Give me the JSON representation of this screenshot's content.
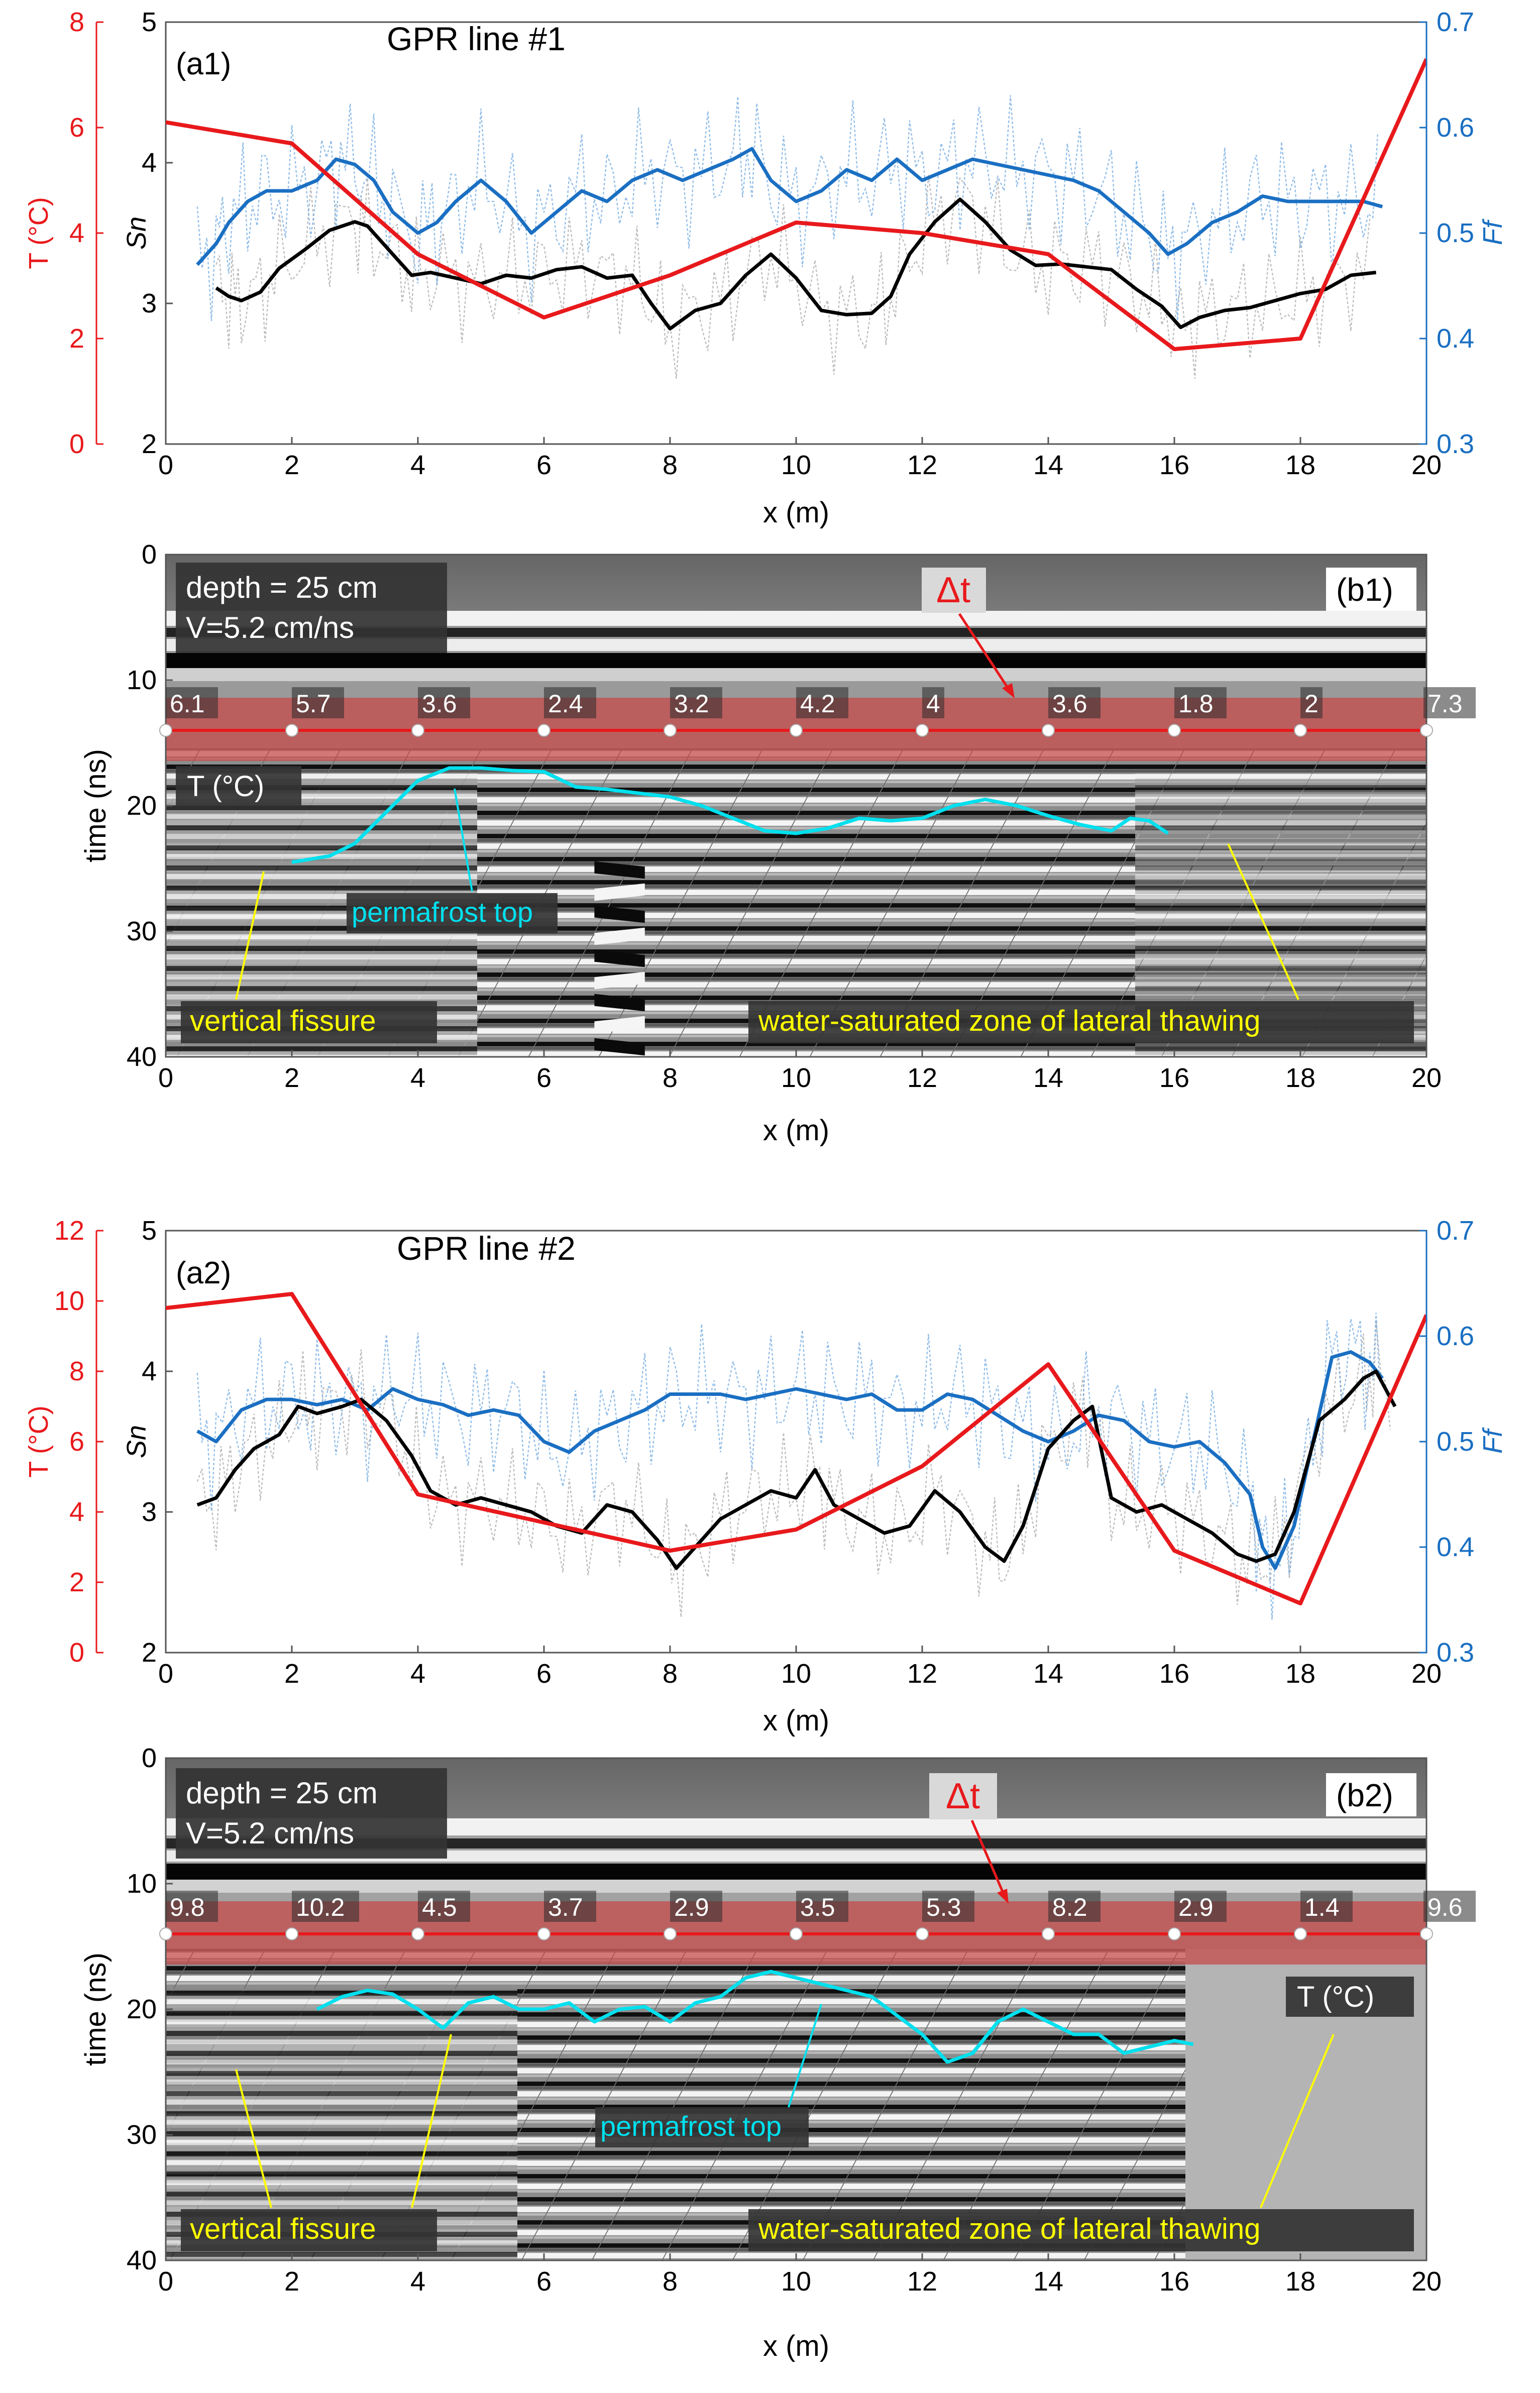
{
  "figure": {
    "panels": [
      {
        "id": "a1",
        "panel_label": "(a1)",
        "title": "GPR line #1",
        "xlabel": "x (m)",
        "left_axis": {
          "label": "T (°C)",
          "ticks": [
            "0",
            "2",
            "4",
            "6",
            "8"
          ],
          "color": "#e8191c"
        },
        "sn_axis": {
          "label": "Sn",
          "ticks": [
            "2",
            "3",
            "4",
            "5"
          ]
        },
        "right_axis": {
          "label": "Ff",
          "ticks": [
            "0.3",
            "0.4",
            "0.5",
            "0.6",
            "0.7"
          ],
          "color": "#1a6fc2"
        },
        "x_ticks": [
          "0",
          "2",
          "4",
          "6",
          "8",
          "10",
          "12",
          "14",
          "16",
          "18",
          "20"
        ]
      },
      {
        "id": "b1",
        "panel_label": "(b1)",
        "xlabel": "x (m)",
        "ylabel": "time (ns)",
        "y_ticks": [
          "0",
          "10",
          "20",
          "30",
          "40"
        ],
        "x_ticks": [
          "0",
          "2",
          "4",
          "6",
          "8",
          "10",
          "12",
          "14",
          "16",
          "18",
          "20"
        ],
        "info_line1": "depth = 25 cm",
        "info_line2": "V=5.2 cm/ns",
        "dt_label": "Δt",
        "t_label": "T (°C)",
        "permafrost_label": "permafrost top",
        "fissure_label": "vertical fissure",
        "thaw_label": "water-saturated zone of lateral thawing",
        "temp_labels": [
          "6.1",
          "5.7",
          "3.6",
          "2.4",
          "3.2",
          "4.2",
          "4",
          "3.6",
          "1.8",
          "2",
          "7.3"
        ]
      },
      {
        "id": "a2",
        "panel_label": "(a2)",
        "title": "GPR line #2",
        "xlabel": "x (m)",
        "left_axis": {
          "label": "T (°C)",
          "ticks": [
            "0",
            "2",
            "4",
            "6",
            "8",
            "10",
            "12"
          ],
          "color": "#e8191c"
        },
        "sn_axis": {
          "label": "Sn",
          "ticks": [
            "2",
            "3",
            "4",
            "5"
          ]
        },
        "right_axis": {
          "label": "Ff",
          "ticks": [
            "0.3",
            "0.4",
            "0.5",
            "0.6",
            "0.7"
          ],
          "color": "#1a6fc2"
        },
        "x_ticks": [
          "0",
          "2",
          "4",
          "6",
          "8",
          "10",
          "12",
          "14",
          "16",
          "18",
          "20"
        ]
      },
      {
        "id": "b2",
        "panel_label": "(b2)",
        "xlabel": "x (m)",
        "ylabel": "time (ns)",
        "y_ticks": [
          "0",
          "10",
          "20",
          "30",
          "40"
        ],
        "x_ticks": [
          "0",
          "2",
          "4",
          "6",
          "8",
          "10",
          "12",
          "14",
          "16",
          "18",
          "20"
        ],
        "info_line1": "depth = 25 cm",
        "info_line2": "V=5.2 cm/ns",
        "dt_label": "Δt",
        "t_label": "T (°C)",
        "permafrost_label": "permafrost top",
        "fissure_label": "vertical fissure",
        "thaw_label": "water-saturated zone of lateral thawing",
        "temp_labels": [
          "9.8",
          "10.2",
          "4.5",
          "3.7",
          "2.9",
          "3.5",
          "5.3",
          "8.2",
          "2.9",
          "1.4",
          "9.6"
        ]
      }
    ]
  },
  "chart_data": [
    {
      "panel": "a1",
      "type": "line",
      "title": "GPR line #1",
      "xlabel": "x (m)",
      "xlim": [
        0,
        20
      ],
      "axes": {
        "T": {
          "label": "T (°C)",
          "range": [
            0,
            8
          ]
        },
        "Sn": {
          "label": "Sn",
          "range": [
            2,
            5
          ]
        },
        "Ff": {
          "label": "Ff",
          "range": [
            0.3,
            0.7
          ]
        }
      },
      "series": [
        {
          "name": "T",
          "axis": "T",
          "color": "#e8191c",
          "x": [
            0,
            2,
            4,
            6,
            8,
            10,
            12,
            14,
            16,
            18,
            20
          ],
          "y": [
            6.1,
            5.7,
            3.6,
            2.4,
            3.2,
            4.2,
            4.0,
            3.6,
            1.8,
            2.0,
            7.3
          ]
        },
        {
          "name": "Sn",
          "axis": "Sn",
          "color": "#000000",
          "x": [
            0.8,
            1.0,
            1.2,
            1.5,
            1.8,
            2.2,
            2.6,
            3.0,
            3.2,
            3.6,
            3.9,
            4.2,
            4.6,
            5.0,
            5.4,
            5.8,
            6.2,
            6.6,
            7.0,
            7.4,
            7.7,
            8.0,
            8.4,
            8.8,
            9.2,
            9.6,
            10.0,
            10.4,
            10.8,
            11.2,
            11.5,
            11.8,
            12.2,
            12.6,
            13.0,
            13.4,
            13.8,
            14.2,
            14.6,
            15.0,
            15.4,
            15.8,
            16.1,
            16.4,
            16.8,
            17.2,
            17.6,
            18.0,
            18.4,
            18.8,
            19.2
          ],
          "y": [
            3.11,
            3.05,
            3.02,
            3.08,
            3.25,
            3.38,
            3.52,
            3.58,
            3.55,
            3.35,
            3.2,
            3.22,
            3.18,
            3.14,
            3.2,
            3.18,
            3.24,
            3.26,
            3.18,
            3.2,
            3.0,
            2.82,
            2.95,
            3.0,
            3.2,
            3.35,
            3.18,
            2.95,
            2.92,
            2.93,
            3.05,
            3.35,
            3.58,
            3.74,
            3.58,
            3.38,
            3.27,
            3.28,
            3.26,
            3.24,
            3.1,
            2.98,
            2.83,
            2.9,
            2.95,
            2.97,
            3.02,
            3.07,
            3.1,
            3.2,
            3.22
          ]
        },
        {
          "name": "Ff",
          "axis": "Ff",
          "color": "#1a6fc2",
          "x": [
            0.5,
            0.8,
            1.0,
            1.3,
            1.6,
            2.0,
            2.4,
            2.7,
            3.0,
            3.3,
            3.6,
            4.0,
            4.3,
            4.6,
            5.0,
            5.4,
            5.8,
            6.2,
            6.6,
            7.0,
            7.4,
            7.8,
            8.2,
            8.6,
            9.0,
            9.3,
            9.6,
            10.0,
            10.4,
            10.8,
            11.2,
            11.6,
            12.0,
            12.4,
            12.8,
            13.2,
            13.6,
            14.0,
            14.4,
            14.8,
            15.2,
            15.6,
            15.9,
            16.2,
            16.6,
            17.0,
            17.4,
            17.8,
            18.2,
            18.6,
            19.0,
            19.3
          ],
          "y": [
            0.47,
            0.49,
            0.51,
            0.53,
            0.54,
            0.54,
            0.55,
            0.57,
            0.565,
            0.55,
            0.52,
            0.5,
            0.51,
            0.53,
            0.55,
            0.53,
            0.5,
            0.52,
            0.54,
            0.53,
            0.55,
            0.56,
            0.55,
            0.56,
            0.57,
            0.58,
            0.55,
            0.53,
            0.54,
            0.56,
            0.55,
            0.57,
            0.55,
            0.56,
            0.57,
            0.565,
            0.56,
            0.555,
            0.55,
            0.54,
            0.52,
            0.5,
            0.48,
            0.49,
            0.51,
            0.52,
            0.535,
            0.53,
            0.53,
            0.53,
            0.53,
            0.525
          ]
        }
      ]
    },
    {
      "panel": "b1",
      "type": "line",
      "xlabel": "x (m)",
      "ylabel": "time (ns)",
      "xlim": [
        0,
        20
      ],
      "ylim": [
        0,
        40
      ],
      "temperature_band_ns": [
        11.5,
        16.5
      ],
      "temperature_line_ns": 14,
      "temperature_points": {
        "x": [
          0,
          2,
          4,
          6,
          8,
          10,
          12,
          14,
          16,
          18,
          20
        ],
        "T": [
          6.1,
          5.7,
          3.6,
          2.4,
          3.2,
          4.2,
          4.0,
          3.6,
          1.8,
          2.0,
          7.3
        ]
      },
      "series": [
        {
          "name": "permafrost top",
          "color": "#00e0ee",
          "x": [
            2.0,
            2.6,
            3.0,
            3.5,
            4.0,
            4.5,
            5.0,
            5.5,
            6.0,
            6.5,
            7.0,
            7.5,
            8.0,
            8.5,
            9.0,
            9.5,
            10.0,
            10.5,
            11.0,
            11.5,
            12.0,
            12.5,
            13.0,
            13.5,
            14.0,
            14.5,
            15.0,
            15.3,
            15.6,
            15.9
          ],
          "y": [
            24.5,
            24.0,
            23.0,
            20.5,
            18.0,
            17.0,
            17.0,
            17.2,
            17.3,
            18.5,
            18.7,
            19.0,
            19.3,
            20.0,
            21.0,
            22.0,
            22.2,
            21.8,
            21.0,
            21.2,
            21.0,
            20.0,
            19.5,
            20.0,
            20.8,
            21.5,
            22.0,
            21.0,
            21.2,
            22.2
          ]
        }
      ]
    },
    {
      "panel": "a2",
      "type": "line",
      "title": "GPR line #2",
      "xlabel": "x (m)",
      "xlim": [
        0,
        20
      ],
      "axes": {
        "T": {
          "label": "T (°C)",
          "range": [
            0,
            12
          ]
        },
        "Sn": {
          "label": "Sn",
          "range": [
            2,
            5
          ]
        },
        "Ff": {
          "label": "Ff",
          "range": [
            0.3,
            0.7
          ]
        }
      },
      "series": [
        {
          "name": "T",
          "axis": "T",
          "color": "#e8191c",
          "x": [
            0,
            2,
            4,
            6,
            8,
            10,
            12,
            14,
            16,
            18,
            20
          ],
          "y": [
            9.8,
            10.2,
            4.5,
            3.7,
            2.9,
            3.5,
            5.3,
            8.2,
            2.9,
            1.4,
            9.6
          ]
        },
        {
          "name": "Sn",
          "axis": "Sn",
          "color": "#000000",
          "x": [
            0.5,
            0.8,
            1.1,
            1.4,
            1.8,
            2.1,
            2.4,
            2.8,
            3.1,
            3.5,
            3.9,
            4.2,
            4.6,
            5.0,
            5.4,
            5.8,
            6.2,
            6.6,
            7.0,
            7.4,
            7.8,
            8.1,
            8.4,
            8.8,
            9.2,
            9.6,
            10.0,
            10.3,
            10.6,
            11.0,
            11.4,
            11.8,
            12.2,
            12.6,
            13.0,
            13.3,
            13.6,
            14.0,
            14.4,
            14.7,
            15.0,
            15.4,
            15.8,
            16.2,
            16.6,
            17.0,
            17.3,
            17.6,
            17.9,
            18.3,
            18.7,
            19.0,
            19.2,
            19.5
          ],
          "y": [
            3.05,
            3.1,
            3.3,
            3.45,
            3.55,
            3.75,
            3.7,
            3.75,
            3.8,
            3.65,
            3.4,
            3.15,
            3.05,
            3.1,
            3.05,
            3.0,
            2.9,
            2.85,
            3.05,
            3.0,
            2.8,
            2.6,
            2.75,
            2.95,
            3.05,
            3.15,
            3.1,
            3.3,
            3.05,
            2.95,
            2.85,
            2.9,
            3.15,
            3.0,
            2.75,
            2.65,
            2.9,
            3.45,
            3.65,
            3.75,
            3.1,
            3.0,
            3.05,
            2.95,
            2.85,
            2.7,
            2.65,
            2.7,
            3.0,
            3.65,
            3.8,
            3.95,
            4.0,
            3.75
          ]
        },
        {
          "name": "Ff",
          "axis": "Ff",
          "color": "#1a6fc2",
          "x": [
            0.5,
            0.8,
            1.2,
            1.6,
            2.0,
            2.4,
            2.8,
            3.2,
            3.6,
            4.0,
            4.4,
            4.8,
            5.2,
            5.6,
            6.0,
            6.4,
            6.8,
            7.2,
            7.6,
            8.0,
            8.4,
            8.8,
            9.2,
            9.6,
            10.0,
            10.4,
            10.8,
            11.2,
            11.6,
            12.0,
            12.4,
            12.8,
            13.2,
            13.6,
            14.0,
            14.4,
            14.8,
            15.2,
            15.6,
            16.0,
            16.4,
            16.8,
            17.2,
            17.4,
            17.6,
            17.9,
            18.2,
            18.5,
            18.8,
            19.1,
            19.3
          ],
          "y": [
            0.51,
            0.5,
            0.53,
            0.54,
            0.54,
            0.535,
            0.54,
            0.53,
            0.55,
            0.54,
            0.535,
            0.525,
            0.53,
            0.525,
            0.5,
            0.49,
            0.51,
            0.52,
            0.53,
            0.545,
            0.545,
            0.545,
            0.54,
            0.545,
            0.55,
            0.545,
            0.54,
            0.545,
            0.53,
            0.53,
            0.545,
            0.54,
            0.525,
            0.51,
            0.5,
            0.51,
            0.525,
            0.52,
            0.5,
            0.495,
            0.5,
            0.48,
            0.45,
            0.4,
            0.38,
            0.42,
            0.5,
            0.58,
            0.585,
            0.575,
            0.56
          ]
        }
      ]
    },
    {
      "panel": "b2",
      "type": "line",
      "xlabel": "x (m)",
      "ylabel": "time (ns)",
      "xlim": [
        0,
        20
      ],
      "ylim": [
        0,
        40
      ],
      "temperature_band_ns": [
        11.5,
        16.5
      ],
      "temperature_line_ns": 14,
      "temperature_points": {
        "x": [
          0,
          2,
          4,
          6,
          8,
          10,
          12,
          14,
          16,
          18,
          20
        ],
        "T": [
          9.8,
          10.2,
          4.5,
          3.7,
          2.9,
          3.5,
          5.3,
          8.2,
          2.9,
          1.4,
          9.6
        ]
      },
      "series": [
        {
          "name": "permafrost top",
          "color": "#00e0ee",
          "x": [
            2.4,
            2.8,
            3.2,
            3.6,
            4.0,
            4.4,
            4.8,
            5.2,
            5.6,
            6.0,
            6.4,
            6.8,
            7.2,
            7.6,
            8.0,
            8.4,
            8.8,
            9.2,
            9.6,
            10.0,
            10.4,
            10.8,
            11.2,
            11.6,
            12.0,
            12.4,
            12.8,
            13.2,
            13.6,
            14.0,
            14.4,
            14.8,
            15.2,
            15.6,
            16.0,
            16.3
          ],
          "y": [
            20.0,
            19.0,
            18.5,
            18.8,
            20.0,
            21.5,
            19.5,
            19.0,
            20.0,
            20.0,
            19.5,
            21.0,
            20.0,
            19.8,
            21.0,
            19.5,
            19.0,
            17.5,
            17.0,
            17.5,
            18.0,
            18.5,
            19.0,
            20.5,
            22.0,
            24.2,
            23.5,
            21.0,
            20.0,
            21.0,
            22.0,
            22.0,
            23.5,
            23.0,
            22.5,
            22.8
          ]
        }
      ]
    }
  ]
}
